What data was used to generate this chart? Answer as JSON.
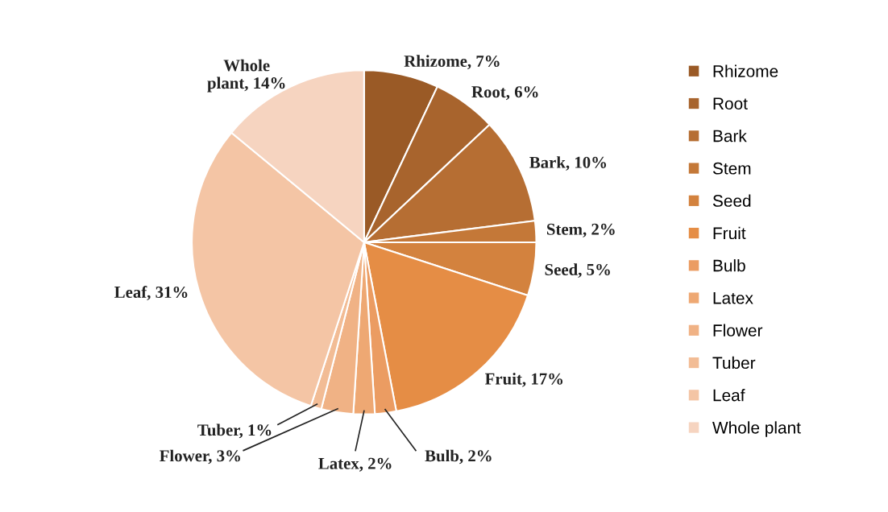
{
  "chart_data": {
    "type": "pie",
    "categories": [
      "Rhizome",
      "Root",
      "Bark",
      "Stem",
      "Seed",
      "Fruit",
      "Bulb",
      "Latex",
      "Flower",
      "Tuber",
      "Leaf",
      "Whole plant"
    ],
    "values": [
      7,
      6,
      10,
      2,
      5,
      17,
      2,
      2,
      3,
      1,
      31,
      14
    ],
    "value_labels": [
      "Rhizome, 7%",
      "Root, 6%",
      "Bark, 10%",
      "Stem, 2%",
      "Seed, 5%",
      "Fruit, 17%",
      "Bulb, 2%",
      "Latex, 2%",
      "Flower, 3%",
      "Tuber, 1%",
      "Leaf, 31%",
      "Whole plant, 14%"
    ],
    "colors": [
      "#9a5a26",
      "#a8642d",
      "#b66e33",
      "#c47838",
      "#d3823e",
      "#e58d45",
      "#eb9c62",
      "#eea873",
      "#f0b285",
      "#f2bc95",
      "#f4c5a5",
      "#f6d4c0"
    ],
    "legend": "right"
  }
}
